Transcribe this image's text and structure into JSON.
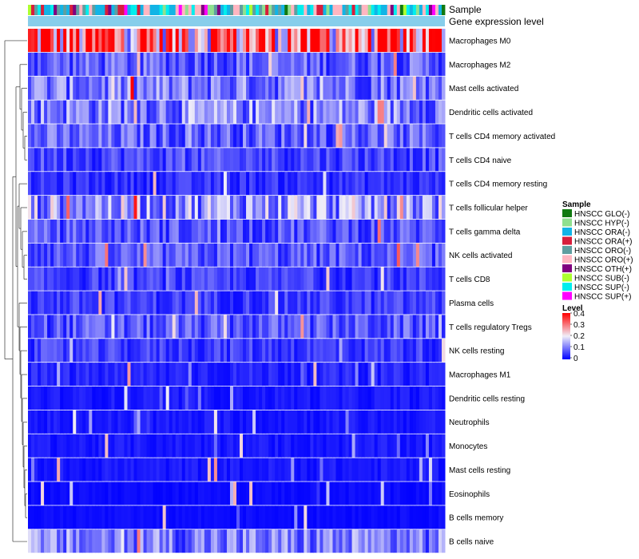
{
  "chart_data": {
    "type": "heatmap",
    "top_tracks": [
      "Sample",
      "Gene expression level"
    ],
    "rows": [
      "Macrophages M0",
      "Macrophages M2",
      "Mast cells activated",
      "Dendritic cells activated",
      "T cells CD4 memory activated",
      "T cells CD4 naive",
      "T cells CD4 memory resting",
      "T cells follicular helper",
      "T cells gamma delta",
      "NK cells activated",
      "T cells CD8",
      "Plasma cells",
      "T cells regulatory  Tregs",
      "NK cells resting",
      "Macrophages M1",
      "Dendritic cells resting",
      "Neutrophils",
      "Monocytes",
      "Mast cells resting",
      "Eosinophils",
      "B cells memory",
      "B cells naive"
    ],
    "row_mean_levels": [
      0.3,
      0.08,
      0.1,
      0.11,
      0.08,
      0.06,
      0.04,
      0.13,
      0.07,
      0.07,
      0.05,
      0.05,
      0.07,
      0.05,
      0.03,
      0.02,
      0.02,
      0.02,
      0.02,
      0.01,
      0.01,
      0.1
    ],
    "n_samples": 130,
    "sample_legend": {
      "title": "Sample",
      "items": [
        {
          "label": "HNSCC GLO(-)",
          "color": "#117a11"
        },
        {
          "label": "HNSCC HYP(-)",
          "color": "#8fe08f"
        },
        {
          "label": "HNSCC ORA(-)",
          "color": "#12b4e6"
        },
        {
          "label": "HNSCC ORA(+)",
          "color": "#d81e3c"
        },
        {
          "label": "HNSCC ORO(-)",
          "color": "#5f9ea0"
        },
        {
          "label": "HNSCC ORO(+)",
          "color": "#ffb6c1"
        },
        {
          "label": "HNSCC OTH(+)",
          "color": "#800080"
        },
        {
          "label": "HNSCC SUB(-)",
          "color": "#adff2f"
        },
        {
          "label": "HNSCC SUP(-)",
          "color": "#00eeee"
        },
        {
          "label": "HNSCC SUP(+)",
          "color": "#ff00ff"
        }
      ]
    },
    "level_legend": {
      "title": "Level",
      "ticks": [
        "0.4",
        "0.3",
        "0.2",
        "0.1",
        "0"
      ],
      "range": [
        0,
        0.4
      ],
      "colors": [
        "#0000ff",
        "#f0eef8",
        "#ff0000"
      ]
    },
    "gene_expression_color": "#87ceeb"
  }
}
